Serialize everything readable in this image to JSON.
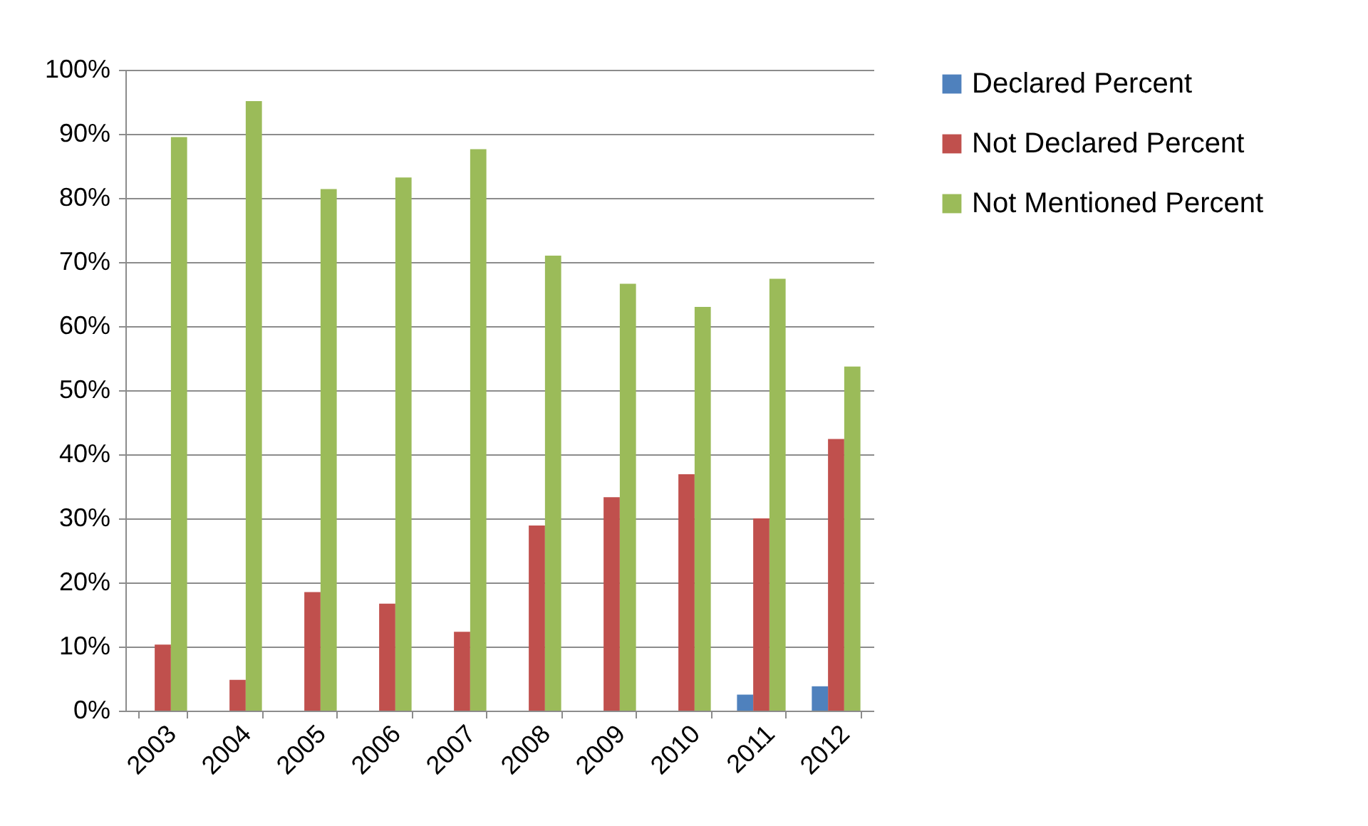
{
  "chart_data": {
    "type": "bar",
    "categories": [
      "2003",
      "2004",
      "2005",
      "2006",
      "2007",
      "2008",
      "2009",
      "2010",
      "2011",
      "2012"
    ],
    "series": [
      {
        "name": "Declared Percent",
        "color": "#4f81bd",
        "values": [
          0,
          0,
          0,
          0,
          0,
          0,
          0,
          0,
          2.5,
          3.8
        ]
      },
      {
        "name": "Not Declared Percent",
        "color": "#c0504d",
        "values": [
          10.3,
          4.8,
          18.5,
          16.7,
          12.3,
          28.9,
          33.3,
          36.9,
          30.0,
          42.4
        ]
      },
      {
        "name": "Not Mentioned Percent",
        "color": "#9bbb59",
        "values": [
          89.5,
          95.1,
          81.4,
          83.2,
          87.6,
          71.0,
          66.6,
          63.0,
          67.4,
          53.7
        ]
      }
    ],
    "ylim": [
      0,
      100
    ],
    "yticks": [
      {
        "value": 0,
        "label": "0%"
      },
      {
        "value": 10,
        "label": "10%"
      },
      {
        "value": 20,
        "label": "20%"
      },
      {
        "value": 30,
        "label": "30%"
      },
      {
        "value": 40,
        "label": "40%"
      },
      {
        "value": 50,
        "label": "50%"
      },
      {
        "value": 60,
        "label": "60%"
      },
      {
        "value": 70,
        "label": "70%"
      },
      {
        "value": 80,
        "label": "80%"
      },
      {
        "value": 90,
        "label": "90%"
      },
      {
        "value": 100,
        "label": "100%"
      }
    ],
    "grid": "y",
    "legend": "right"
  }
}
